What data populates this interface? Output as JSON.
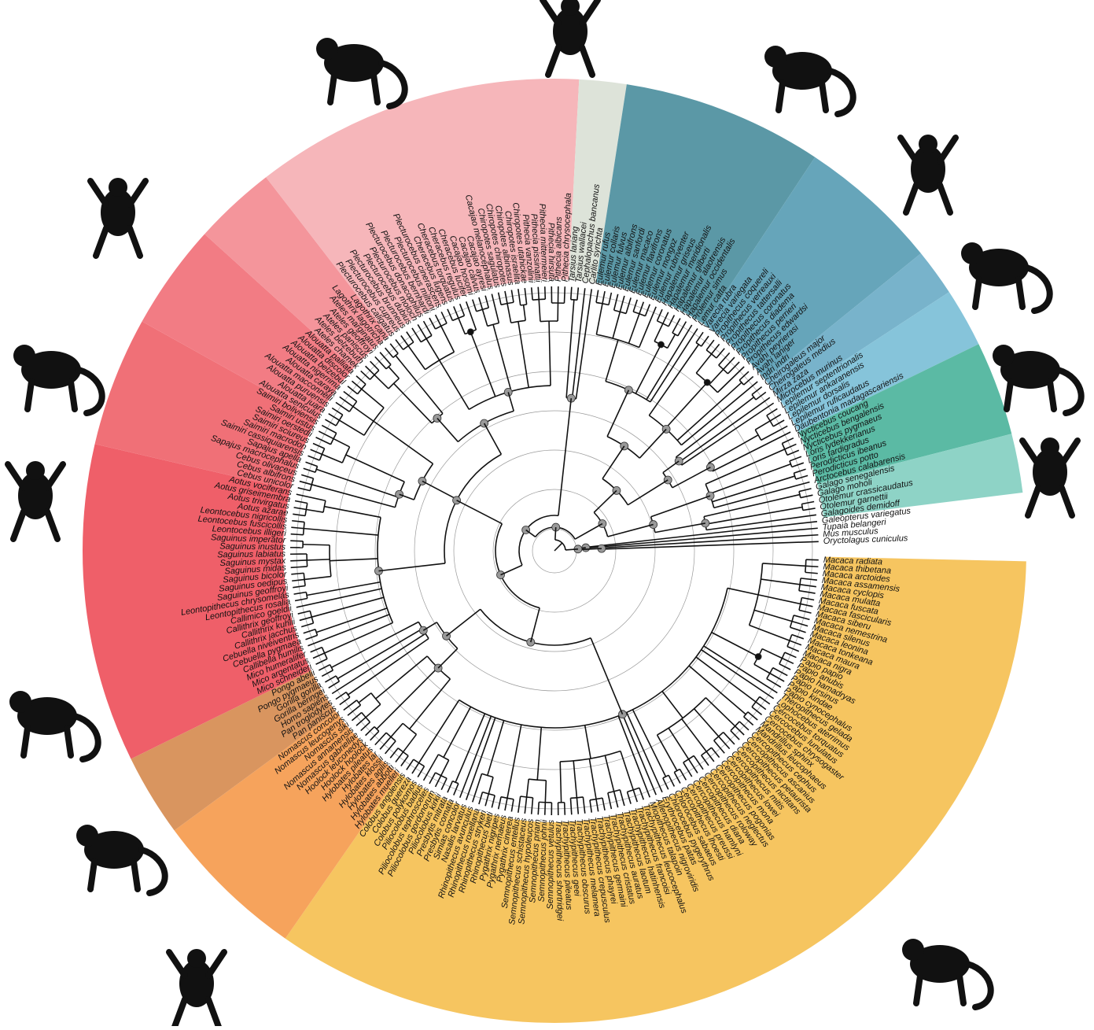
{
  "species": [
    "Macaca radiata",
    "Macaca thibetana",
    "Macaca arctoides",
    "Macaca assamensis",
    "Macaca cyclopis",
    "Macaca mulatta",
    "Macaca fuscata",
    "Macaca fascicularis",
    "Macaca siberu",
    "Macaca nemestrina",
    "Macaca silenus",
    "Macaca leonina",
    "Macaca tonkeana",
    "Macaca maura",
    "Macaca nigra",
    "Papio papio",
    "Papio anubis",
    "Papio hamadryas",
    "Papio ursinus",
    "Papio kindae",
    "Papio cynocephalus",
    "Theropithecus gelada",
    "Lophocebus aterrimus",
    "Cercocebus torquatus",
    "Cercocebus lunulatus",
    "Cercocebus chrysogaster",
    "Mandrillus sphinx",
    "Mandrillus leucophaeus",
    "Cercopithecus cephus",
    "Cercopithecus ascanius",
    "Cercopithecus petaurista",
    "Cercopithecus nictitans",
    "Cercopithecus mitis",
    "Cercopithecus lowei",
    "Cercopithecus mona",
    "Cercopithecus pogonias",
    "Cercopithecus neglectus",
    "Cercopithecus roloway",
    "Cercopithecus diana",
    "Cercopithecus hamlyni",
    "Cercopithecus preussi",
    "Cercopithecus lhoesti",
    "Chlorocebus sabaeus",
    "Chlorocebus pygerythrus",
    "Erythrocebus patas",
    "Allenopithecus nigroviridis",
    "Miopithecus talapoin",
    "Trachypithecus leucocephalus",
    "Trachypithecus francoisi",
    "Trachypithecus hatinhensis",
    "Trachypithecus laotum",
    "Trachypithecus auratus",
    "Trachypithecus cristatus",
    "Trachypithecus germaini",
    "Trachypithecus phayrei",
    "Trachypithecus crepusculus",
    "Trachypithecus melamera",
    "Trachypithecus obscurus",
    "Trachypithecus geei",
    "Trachypithecus pileatus",
    "Trachypithecus shortridgei",
    "Semnopithecus vetulus",
    "Semnopithecus johnii",
    "Semnopithecus priam",
    "Semnopithecus hypoleucos",
    "Semnopithecus schistaceus",
    "Semnopithecus entellus",
    "Pygathrix cinerea",
    "Pygathrix nemaeus",
    "Pygathrix nigripes",
    "Rhinopithecus bieti",
    "Rhinopithecus strykeri",
    "Rhinopithecus roxellana",
    "Rhinopithecus avunculus",
    "Nasalis larvatus",
    "Simias concolor",
    "Presbytis comata",
    "Presbytis mitrata",
    "Piliocolobus kirkii",
    "Piliocolobus gordonorum",
    "Piliocolobus tephrosceles",
    "Piliocolobus badius",
    "Colobus polykomos",
    "Colobus guereza",
    "Colobus angolensis",
    "Hylobates muelleri",
    "Hylobates abbotti",
    "Hylobates agilis",
    "Hylobates klossii",
    "Hylobates lar",
    "Hylobates pileatus",
    "Hoolock hoolock",
    "Hoolock leuconedys",
    "Nomascus gabriellae",
    "Nomascus annamensis",
    "Nomascus siki",
    "Nomascus leucogenys",
    "Nomascus concolor",
    "Pan paniscus",
    "Pan troglodytes",
    "Homo sapiens",
    "Gorilla beringei",
    "Gorilla gorilla",
    "Pongo pygmaeus",
    "Pongo abelii",
    "Mico schneideri",
    "Mico argentatus",
    "Mico humeralifer",
    "Callibella humilis",
    "Cebuella pygmaea",
    "Cebuella niveiventris",
    "Callithrix jacchus",
    "Callithrix kuhlii",
    "Callithrix geoffroyi",
    "Callimico goeldii",
    "Leontopithecus rosalia",
    "Leontopithecus chrysomelas",
    "Saguinus geoffroyi",
    "Saguinus oedipus",
    "Saguinus bicolor",
    "Saguinus midas",
    "Saguinus mystax",
    "Saguinus labiatus",
    "Saguinus inustus",
    "Saguinus imperator",
    "Leontocebus illigeri",
    "Leontocebus fuscicollis",
    "Leontocebus nigricollis",
    "Aotus azarae",
    "Aotus trivirgatus",
    "Aotus griseimembra",
    "Aotus vociferans",
    "Cebus unicolor",
    "Cebus albifrons",
    "Cebus olivaceus",
    "Sapajus macrocephalus",
    "Sapajus apella",
    "Saimiri cassiquiarensis",
    "Saimiri macrodon",
    "Saimiri sciureus",
    "Saimiri oerstedii",
    "Saimiri ustus",
    "Saimiri boliviensis",
    "Alouatta seniculus",
    "Alouatta juara",
    "Alouatta puruensis",
    "Alouatta macconnelli",
    "Alouatta caraya",
    "Alouatta nigerrima",
    "Alouatta belzebul",
    "Alouatta discolor",
    "Alouatta palliata",
    "Ateles chamek",
    "Ateles belzebuth",
    "Ateles paniscus",
    "Ateles geoffroyi",
    "Ateles marginatus",
    "Lagothrix lagotricha",
    "Lagothrix cana",
    "Plecturocebus caligatus",
    "Plecturocebus cupreus",
    "Plecturocebus brunneus",
    "Plecturocebus dubius",
    "Plecturocebus moloch",
    "Plecturocebus donacophilus",
    "Plecturocebus bernhardi",
    "Plecturocebus miltoni",
    "Plecturocebus cinerascens",
    "Cheracebus lugens",
    "Cheracebus torquatus",
    "Cheracebus regulus",
    "Cheracebus lucifer",
    "Cacajao hosomi",
    "Cacajao calvus",
    "Cacajao ayresi",
    "Cacajao melanocephalus",
    "Chiropotes sagulatus",
    "Chiropotes chiropotes",
    "Chiropotes albinasus",
    "Chiropotes israelita",
    "Chiropotes utahickae",
    "Pithecia vanzolinii",
    "Pithecia pissinattii",
    "Pithecia mittermeieri",
    "Pithecia hirsuta",
    "Pithecia albicans",
    "Pithecia chrysocephala",
    "Tarsius lariang",
    "Tarsius wallacei",
    "Cephalopachus bancanus",
    "Carlito syrichta",
    "Eulemur rufus",
    "Eulemur collaris",
    "Eulemur fulvus",
    "Eulemur albifrons",
    "Eulemur sanfordi",
    "Eulemur macaco",
    "Eulemur flavifrons",
    "Eulemur coronatus",
    "Eulemur mongoz",
    "Eulemur rubriventer",
    "Hapalemur griseus",
    "Hapalemur meridionalis",
    "Hapalemur gilberti",
    "Hapalemur alaotrensis",
    "Hapalemur occidentalis",
    "Prolemur simus",
    "Lemur catta",
    "Varecia rubra",
    "Varecia variegata",
    "Propithecus coquereli",
    "Propithecus verreauxi",
    "Propithecus tattersalli",
    "Propithecus coronatus",
    "Propithecus diadema",
    "Propithecus perrieri",
    "Propithecus edwardsi",
    "Avahi peyrierasi",
    "Avahi laniger",
    "Indri indri",
    "Cheirogaleus major",
    "Cheirogaleus medius",
    "Mirza zaza",
    "Microcebus murinus",
    "Lepilemur septentrionalis",
    "Lepilemur ankaranensis",
    "Lepilemur dorsalis",
    "Lepilemur ruficaudatus",
    "Daubentonia madagascariensis",
    "Nycticebus coucang",
    "Nycticebus bengalensis",
    "Nycticebus pygmaeus",
    "Loris lydekkerianus",
    "Loris tardigradus",
    "Perodicticus ibeanus",
    "Perodicticus potto",
    "Arctocebus calabarensis",
    "Galago senegalensis",
    "Galago moholi",
    "Otolemur crassicaudatus",
    "Otolemur garnettii",
    "Galagoides demidoff",
    "Galeopterus variegatus",
    "Tupaia belangeri",
    "Mus musculus",
    "Oryctolagus cuniculus"
  ]
}
